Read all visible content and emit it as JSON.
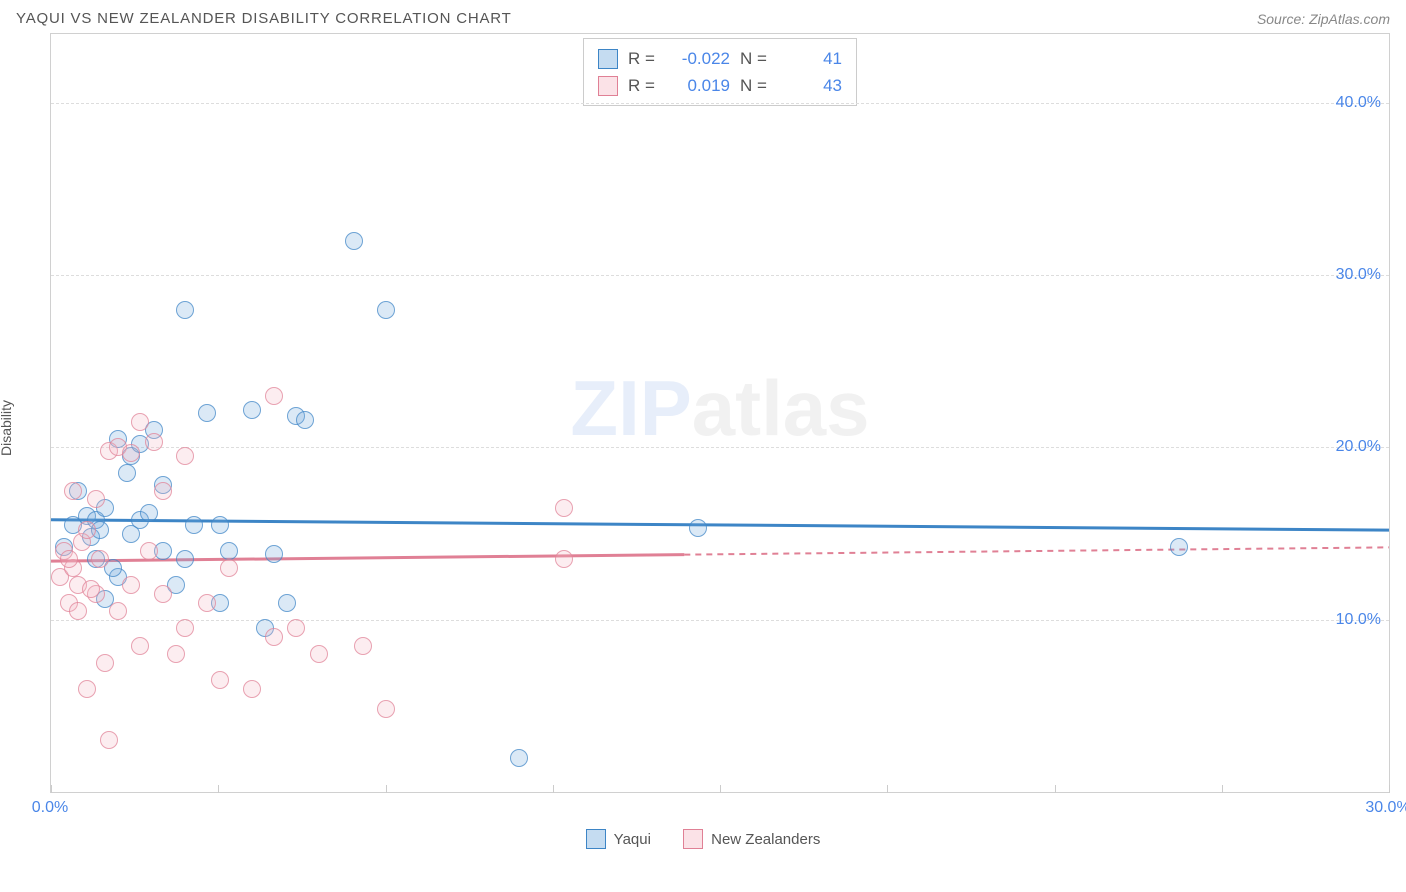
{
  "title": "YAQUI VS NEW ZEALANDER DISABILITY CORRELATION CHART",
  "source": "Source: ZipAtlas.com",
  "ylabel": "Disability",
  "watermark": {
    "part1": "ZIP",
    "part2": "atlas"
  },
  "chart": {
    "type": "scatter",
    "background_color": "#ffffff",
    "grid_color": "#dddddd",
    "xlim": [
      0,
      30
    ],
    "ylim": [
      0,
      44
    ],
    "xticks": [
      0,
      3.75,
      7.5,
      11.25,
      15,
      18.75,
      22.5,
      26.25,
      30
    ],
    "xticklabels": {
      "0": "0.0%",
      "30": "30.0%"
    },
    "yticks": [
      10,
      20,
      30,
      40
    ],
    "yticklabels": [
      "10.0%",
      "20.0%",
      "30.0%",
      "40.0%"
    ],
    "marker_radius": 9,
    "marker_fill_opacity": 0.25,
    "marker_stroke_opacity": 0.7,
    "series": [
      {
        "name": "Yaqui",
        "color": "#6fa8dc",
        "stroke": "#3d85c6",
        "r_value": "-0.022",
        "n_value": "41",
        "trend": {
          "y_start": 15.8,
          "y_end": 15.2,
          "dashed_from": 30
        },
        "points": [
          [
            0.3,
            14.2
          ],
          [
            0.5,
            15.5
          ],
          [
            0.8,
            16.0
          ],
          [
            1.0,
            13.5
          ],
          [
            1.0,
            15.8
          ],
          [
            1.2,
            11.2
          ],
          [
            1.2,
            16.5
          ],
          [
            1.5,
            20.5
          ],
          [
            1.5,
            12.5
          ],
          [
            1.8,
            15.0
          ],
          [
            1.8,
            19.5
          ],
          [
            2.0,
            15.8
          ],
          [
            2.0,
            20.2
          ],
          [
            2.3,
            21.0
          ],
          [
            2.5,
            14.0
          ],
          [
            2.5,
            17.8
          ],
          [
            3.0,
            13.5
          ],
          [
            3.0,
            28.0
          ],
          [
            3.2,
            15.5
          ],
          [
            3.5,
            22.0
          ],
          [
            3.8,
            15.5
          ],
          [
            3.8,
            11.0
          ],
          [
            4.0,
            14.0
          ],
          [
            4.5,
            22.2
          ],
          [
            4.8,
            9.5
          ],
          [
            5.0,
            13.8
          ],
          [
            5.3,
            11.0
          ],
          [
            5.5,
            21.8
          ],
          [
            5.7,
            21.6
          ],
          [
            6.8,
            32.0
          ],
          [
            7.5,
            28.0
          ],
          [
            10.5,
            2.0
          ],
          [
            14.5,
            15.3
          ],
          [
            25.3,
            14.2
          ],
          [
            0.6,
            17.5
          ],
          [
            0.9,
            14.8
          ],
          [
            1.1,
            15.2
          ],
          [
            1.4,
            13.0
          ],
          [
            2.2,
            16.2
          ],
          [
            2.8,
            12.0
          ],
          [
            1.7,
            18.5
          ]
        ]
      },
      {
        "name": "New Zealanders",
        "color": "#f4b6c2",
        "stroke": "#e08095",
        "r_value": "0.019",
        "n_value": "43",
        "trend": {
          "y_start": 13.4,
          "y_end": 14.2,
          "dashed_from": 14.2
        },
        "points": [
          [
            0.2,
            12.5
          ],
          [
            0.3,
            14.0
          ],
          [
            0.4,
            11.0
          ],
          [
            0.5,
            13.0
          ],
          [
            0.5,
            17.5
          ],
          [
            0.6,
            12.0
          ],
          [
            0.7,
            14.5
          ],
          [
            0.8,
            15.2
          ],
          [
            0.8,
            6.0
          ],
          [
            1.0,
            11.5
          ],
          [
            1.0,
            17.0
          ],
          [
            1.2,
            7.5
          ],
          [
            1.3,
            19.8
          ],
          [
            1.3,
            3.0
          ],
          [
            1.5,
            10.5
          ],
          [
            1.5,
            20.0
          ],
          [
            1.8,
            19.7
          ],
          [
            1.8,
            12.0
          ],
          [
            2.0,
            8.5
          ],
          [
            2.0,
            21.5
          ],
          [
            2.3,
            20.3
          ],
          [
            2.5,
            11.5
          ],
          [
            2.5,
            17.5
          ],
          [
            2.8,
            8.0
          ],
          [
            3.0,
            19.5
          ],
          [
            3.0,
            9.5
          ],
          [
            3.5,
            11.0
          ],
          [
            3.8,
            6.5
          ],
          [
            4.0,
            13.0
          ],
          [
            4.5,
            6.0
          ],
          [
            5.0,
            9.0
          ],
          [
            5.0,
            23.0
          ],
          [
            5.5,
            9.5
          ],
          [
            6.0,
            8.0
          ],
          [
            7.0,
            8.5
          ],
          [
            7.5,
            4.8
          ],
          [
            11.5,
            16.5
          ],
          [
            11.5,
            13.5
          ],
          [
            0.4,
            13.5
          ],
          [
            0.6,
            10.5
          ],
          [
            0.9,
            11.8
          ],
          [
            1.1,
            13.5
          ],
          [
            2.2,
            14.0
          ]
        ]
      }
    ],
    "legend_label_1": "Yaqui",
    "legend_label_2": "New Zealanders"
  }
}
